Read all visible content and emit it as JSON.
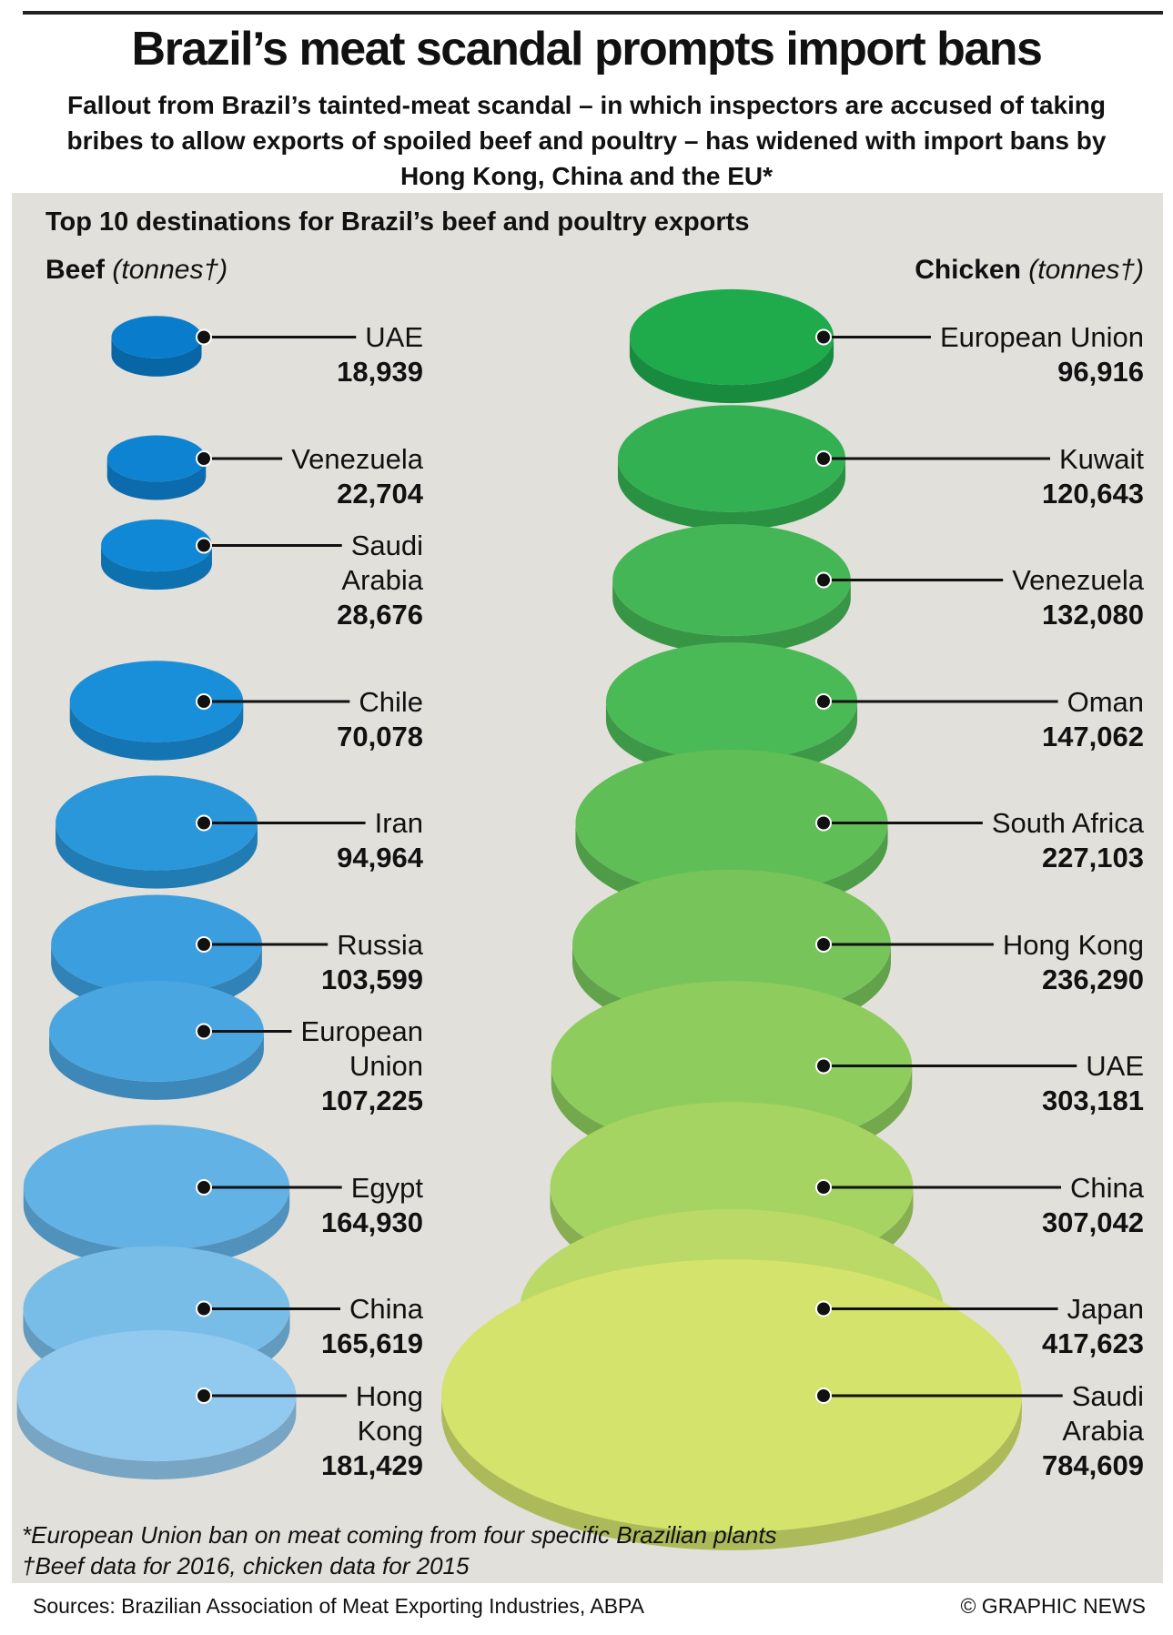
{
  "title": "Brazil’s meat scandal prompts import bans",
  "subtitle": "Fallout from Brazil’s tainted-meat scandal – in which inspectors are accused of taking bribes to allow exports of spoiled beef and poultry – has widened with import bans by Hong Kong, China and the EU*",
  "section_title": "Top 10 destinations for Brazil’s beef and poultry exports",
  "chart_data": [
    {
      "type": "disc",
      "name": "Beef",
      "unit": "(tonnes†)",
      "categories": [
        "UAE",
        "Venezuela",
        "Saudi\nArabia",
        "Chile",
        "Iran",
        "Russia",
        "European\nUnion",
        "Egypt",
        "China",
        "Hong\nKong"
      ],
      "values": [
        18939,
        22704,
        28676,
        70078,
        94964,
        103599,
        107225,
        164930,
        165619,
        181429
      ],
      "value_labels": [
        "18,939",
        "22,704",
        "28,676",
        "70,078",
        "94,964",
        "103,599",
        "107,225",
        "164,930",
        "165,619",
        "181,429"
      ],
      "colors": [
        "#0a7ccc",
        "#0d83d2",
        "#1088d6",
        "#1a8fd9",
        "#2a97db",
        "#3b9fdf",
        "#4aa6e1",
        "#63b2e5",
        "#78bde8",
        "#92c9ee"
      ]
    },
    {
      "type": "disc",
      "name": "Chicken",
      "unit": "(tonnes†)",
      "categories": [
        "European Union",
        "Kuwait",
        "Venezuela",
        "Oman",
        "South Africa",
        "Hong Kong",
        "UAE",
        "China",
        "Japan",
        "Saudi\nArabia"
      ],
      "values": [
        96916,
        120643,
        132080,
        147062,
        227103,
        236290,
        303181,
        307042,
        417623,
        784609
      ],
      "value_labels": [
        "96,916",
        "120,643",
        "132,080",
        "147,062",
        "227,103",
        "236,290",
        "303,181",
        "307,042",
        "417,623",
        "784,609"
      ],
      "colors": [
        "#1faa4c",
        "#33b152",
        "#45b655",
        "#4aba56",
        "#5fbe56",
        "#77c55a",
        "#8ecd5d",
        "#a5d462",
        "#bad966",
        "#d3e36c"
      ]
    }
  ],
  "footnotes": [
    "*European Union ban on meat coming from four specific Brazilian plants",
    "†Beef data for 2016, chicken data for 2015"
  ],
  "source": "Sources: Brazilian Association of Meat Exporting Industries, ABPA",
  "credit": "© GRAPHIC NEWS"
}
